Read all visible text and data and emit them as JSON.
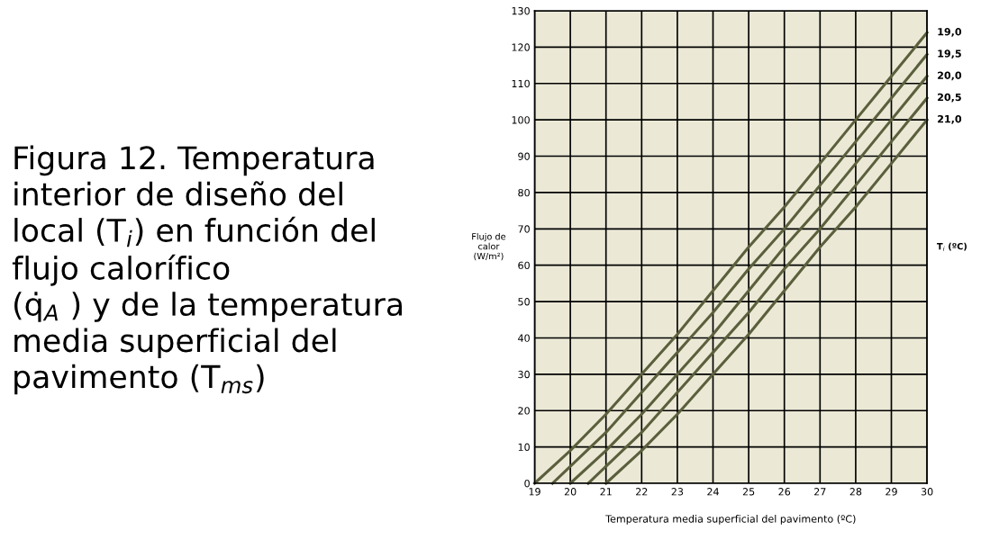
{
  "chart_data": {
    "type": "line",
    "title": "Figura 12. Temperatura\ninterior de diseño del\nlocal (T$_{i}$) en función del\nflujo calorífico\n(q̇$_{A}$ ) y de la temperatura\nmedia superficial del\npavimento (T$_{ms}$)",
    "xlabel": "Temperatura media superficial del pavimento (ºC)",
    "ylabel": "Flujo de\ncalor\n(W/m²)",
    "legend_title": "T$_{i}$ (ºC)",
    "series": [
      {
        "name": "19,0",
        "color": "#5b5f3c",
        "x": [
          19,
          20,
          21,
          22,
          23,
          24,
          25,
          26,
          27,
          28,
          29,
          30
        ],
        "values": [
          0,
          9,
          19,
          30,
          41,
          53,
          65,
          76,
          88,
          100,
          112,
          124
        ]
      },
      {
        "name": "19,5",
        "color": "#5b5f3c",
        "x": [
          19.5,
          21,
          22,
          23,
          24,
          25,
          26,
          27,
          28,
          29,
          30
        ],
        "values": [
          0,
          14,
          25,
          36,
          47,
          59,
          70,
          82,
          94,
          106,
          118
        ]
      },
      {
        "name": "20,0",
        "color": "#5b5f3c",
        "x": [
          20,
          21,
          22,
          23,
          24,
          25,
          26,
          27,
          28,
          29,
          30
        ],
        "values": [
          0,
          9,
          19,
          30,
          41,
          53,
          65,
          76,
          88,
          100,
          112
        ]
      },
      {
        "name": "20,5",
        "color": "#5b5f3c",
        "x": [
          20.5,
          22,
          23,
          24,
          25,
          26,
          27,
          28,
          29,
          30
        ],
        "values": [
          0,
          14,
          25,
          36,
          47,
          59,
          70,
          82,
          94,
          106
        ]
      },
      {
        "name": "21,0",
        "color": "#5b5f3c",
        "x": [
          21,
          22,
          23,
          24,
          25,
          26,
          27,
          28,
          29,
          30
        ],
        "values": [
          0,
          9,
          19,
          30,
          41,
          53,
          65,
          76,
          88,
          100
        ]
      }
    ],
    "xlim": [
      19,
      30
    ],
    "xticks": [
      19,
      20,
      21,
      22,
      23,
      24,
      25,
      26,
      27,
      28,
      29,
      30
    ],
    "ylim": [
      0,
      130
    ],
    "yticks": [
      0,
      10,
      20,
      30,
      40,
      50,
      60,
      70,
      80,
      90,
      100,
      110,
      120,
      130
    ],
    "grid": true,
    "line_style": "solid",
    "marker": "none"
  }
}
